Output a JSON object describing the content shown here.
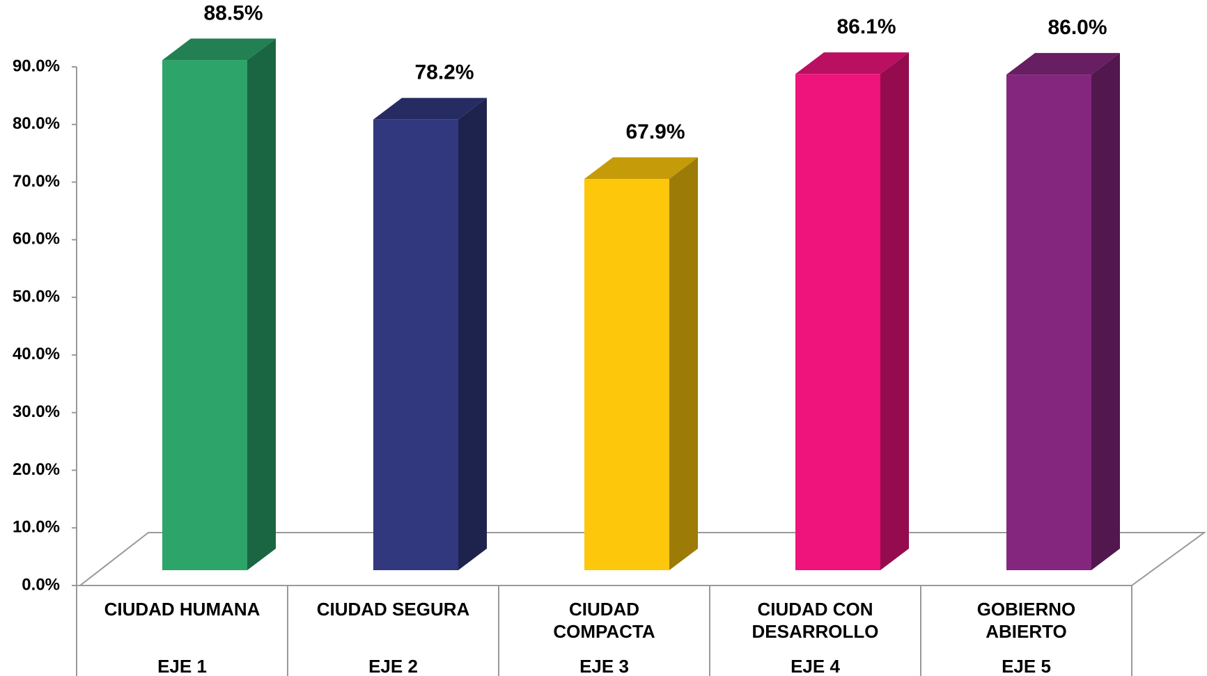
{
  "chart_data": {
    "type": "bar3d",
    "categories": [
      "CIUDAD HUMANA",
      "CIUDAD SEGURA",
      "CIUDAD\nCOMPACTA",
      "CIUDAD CON\nDESARROLLO",
      "GOBIERNO\nABIERTO"
    ],
    "groups": [
      "EJE 1",
      "EJE 2",
      "EJE 3",
      "EJE 4",
      "EJE 5"
    ],
    "values": [
      88.5,
      78.2,
      67.9,
      86.1,
      86.0
    ],
    "value_labels": [
      "88.5%",
      "78.2%",
      "67.9%",
      "86.1%",
      "86.0%"
    ],
    "colors": [
      "#2ca46a",
      "#31387e",
      "#fdc70c",
      "#ee147c",
      "#84267e"
    ],
    "ylim": [
      0,
      90
    ],
    "yticks": [
      {
        "value": 0,
        "label": "0.0%"
      },
      {
        "value": 10,
        "label": "10.0%"
      },
      {
        "value": 20,
        "label": "20.0%"
      },
      {
        "value": 30,
        "label": "30.0%"
      },
      {
        "value": 40,
        "label": "40.0%"
      },
      {
        "value": 50,
        "label": "50.0%"
      },
      {
        "value": 60,
        "label": "60.0%"
      },
      {
        "value": 70,
        "label": "70.0%"
      },
      {
        "value": 80,
        "label": "80.0%"
      },
      {
        "value": 90,
        "label": "90.0%"
      }
    ]
  }
}
